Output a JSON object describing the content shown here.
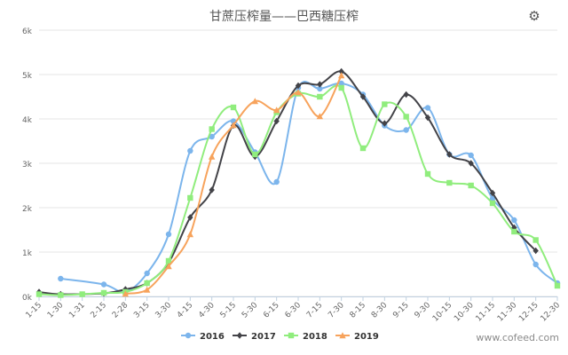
{
  "title": "甘蔗压榨量——巴西糖压榨",
  "toolbar": {
    "menu_icon": "gear-icon"
  },
  "watermark": "www.cofeed.com",
  "chart_data": {
    "type": "line",
    "title": "甘蔗压榨量——巴西糖压榨",
    "xlabel": "",
    "ylabel": "",
    "ylim": [
      0,
      6000
    ],
    "y_ticks": [
      "0k",
      "1k",
      "2k",
      "3k",
      "4k",
      "5k",
      "6k"
    ],
    "grid": true,
    "legend": "bottom-center",
    "categories": [
      "1-15",
      "1-30",
      "1-31",
      "2-15",
      "2-28",
      "3-15",
      "3-30",
      "4-15",
      "4-30",
      "5-15",
      "5-30",
      "6-15",
      "6-30",
      "7-15",
      "7-30",
      "8-15",
      "8-30",
      "9-15",
      "9-30",
      "10-15",
      "10-30",
      "11-15",
      "11-30",
      "12-15",
      "12-30"
    ],
    "series": [
      {
        "name": "2016",
        "color": "#7cb5ec",
        "marker": "circle",
        "values": [
          null,
          400,
          null,
          270,
          100,
          520,
          1400,
          3280,
          3600,
          3950,
          3250,
          2580,
          4700,
          4680,
          4800,
          4550,
          3850,
          3750,
          4250,
          3200,
          3180,
          2200,
          1720,
          720,
          300
        ]
      },
      {
        "name": "2017",
        "color": "#434348",
        "marker": "diamond",
        "values": [
          100,
          50,
          null,
          70,
          160,
          300,
          760,
          1780,
          2400,
          3850,
          3150,
          3950,
          4750,
          4780,
          5070,
          4500,
          3900,
          4550,
          4030,
          3200,
          3000,
          2330,
          1550,
          1030,
          null
        ]
      },
      {
        "name": "2018",
        "color": "#90ed7d",
        "marker": "square",
        "values": [
          50,
          30,
          50,
          80,
          100,
          300,
          800,
          2220,
          3770,
          4260,
          3200,
          4150,
          4570,
          4500,
          4700,
          3340,
          4330,
          4050,
          2760,
          2560,
          2500,
          2100,
          1460,
          1270,
          240
        ]
      },
      {
        "name": "2019",
        "color": "#f7a35c",
        "marker": "triangle",
        "values": [
          null,
          null,
          null,
          null,
          60,
          150,
          680,
          1400,
          3150,
          3860,
          4400,
          4200,
          4600,
          4060,
          4980,
          null,
          null,
          null,
          null,
          null,
          null,
          null,
          null,
          null,
          null
        ]
      }
    ]
  }
}
